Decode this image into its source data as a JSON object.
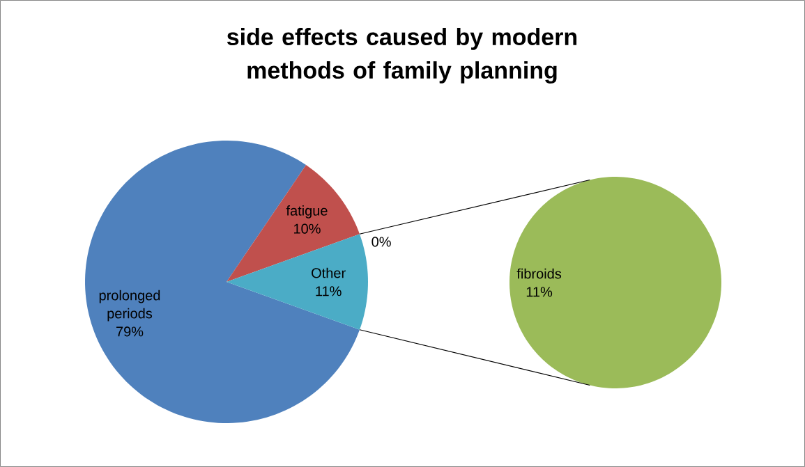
{
  "chart_data": [
    {
      "type": "pie",
      "title": "side effects caused by modern methods of family planning",
      "categories": [
        "prolonged periods",
        "fatigue",
        null,
        "Other"
      ],
      "values": [
        79,
        10,
        0,
        11
      ],
      "colors": [
        "#4f81bd",
        "#c0504d",
        "#f79646",
        "#4bacc6"
      ],
      "value_labels": [
        "79%",
        "10%",
        "0%",
        "11%"
      ]
    },
    {
      "type": "pie",
      "categories": [
        "fibroids"
      ],
      "values": [
        11
      ],
      "colors": [
        "#9bbb59"
      ],
      "value_labels": [
        "11%"
      ]
    }
  ]
}
